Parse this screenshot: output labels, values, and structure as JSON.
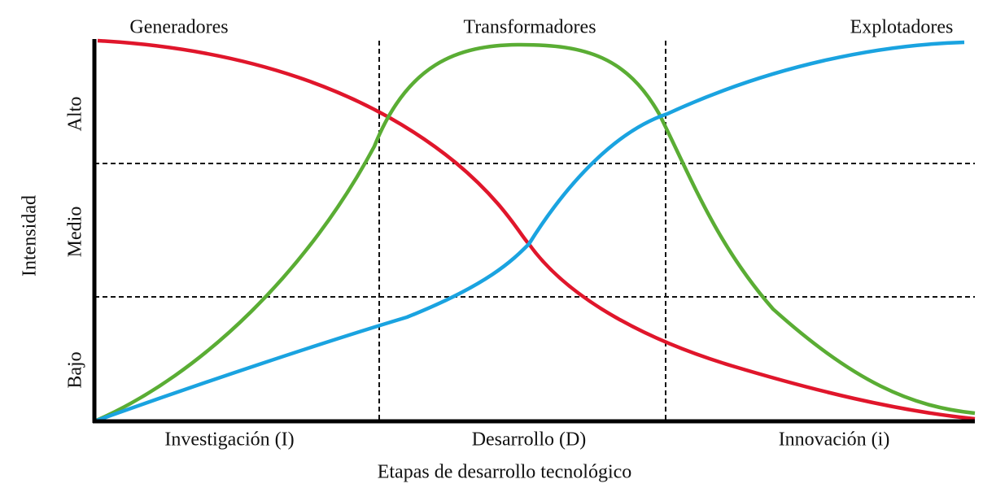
{
  "stages_top": [
    "Generadores",
    "Transformadores",
    "Explotadores"
  ],
  "stages_bottom": [
    "Investigación (I)",
    "Desarrollo (D)",
    "Innovación (i)"
  ],
  "x_axis_title": "Etapas de desarrollo tecnológico",
  "y_axis_title": "Intensidad",
  "y_levels": [
    "Alto",
    "Medio",
    "Bajo"
  ]
}
